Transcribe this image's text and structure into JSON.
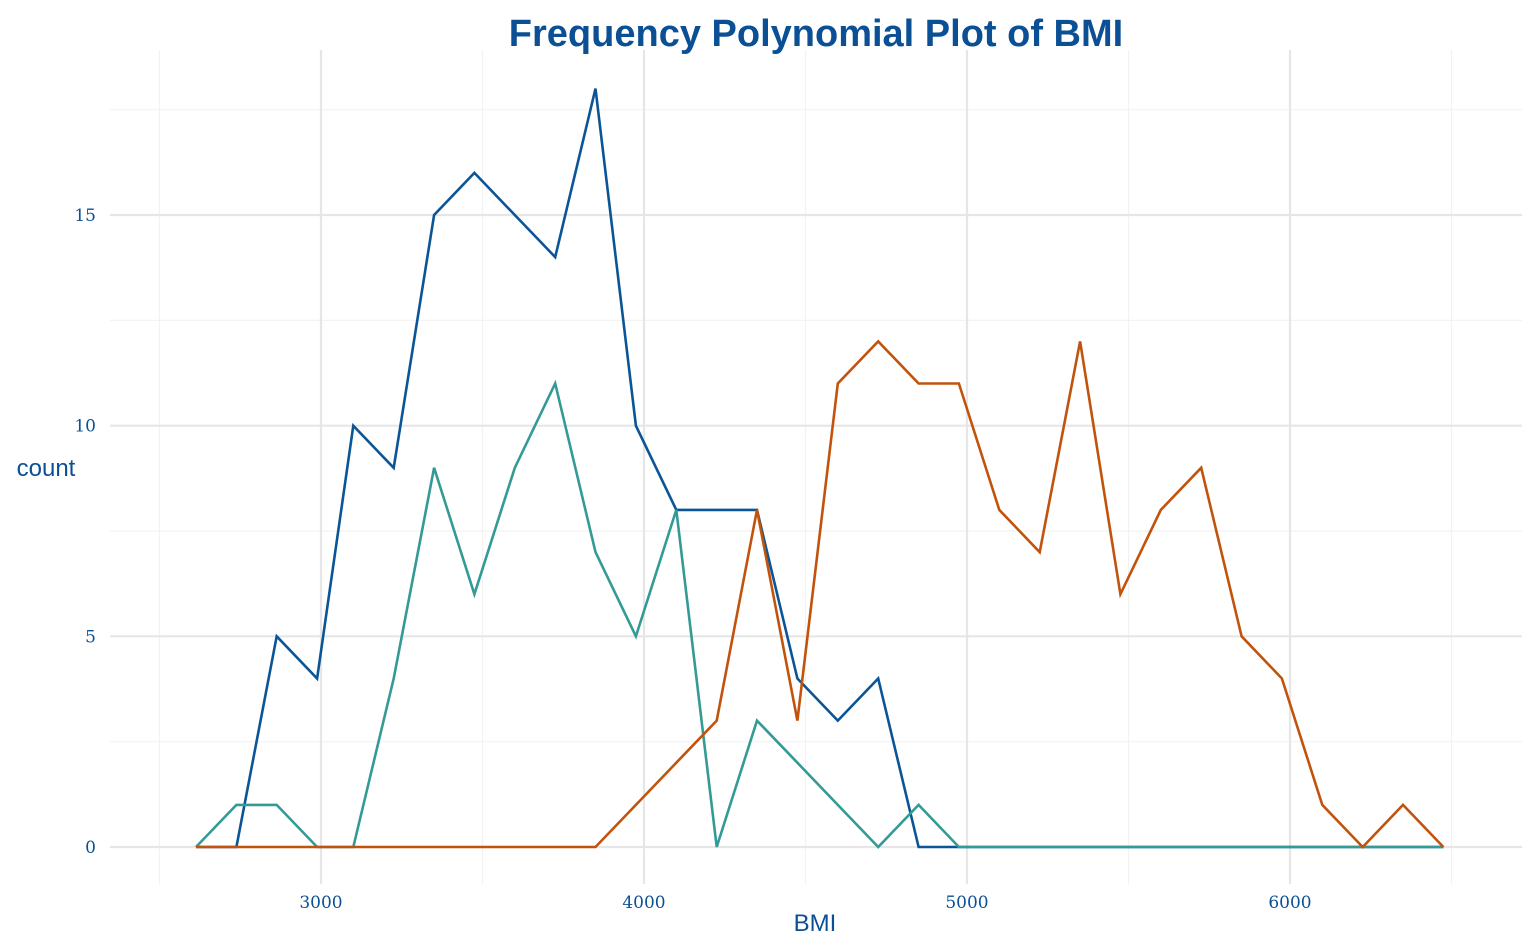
{
  "chart_data": {
    "type": "line",
    "title": "Frequency Polynomial Plot of BMI",
    "xlabel": "BMI",
    "ylabel": "count",
    "xlim": [
      2500,
      6500
    ],
    "ylim": [
      -0.6,
      18.5
    ],
    "x_ticks": [
      "3000",
      "4000",
      "5000",
      "6000"
    ],
    "y_ticks": [
      "0",
      "5",
      "10",
      "15"
    ],
    "x_tick_values": [
      3000,
      4000,
      5000,
      6000
    ],
    "y_tick_values": [
      0,
      5,
      10,
      15
    ],
    "grid": true,
    "legend": "none",
    "colors": {
      "title": "#0b4f95",
      "axis_text": "#0b4f95",
      "grid_major": "#e6e6e6",
      "grid_minor": "#f2f2f2"
    },
    "series": [
      {
        "color": "#0b5597",
        "x": [
          2613,
          2738,
          2863,
          2988,
          3100,
          3225,
          3350,
          3475,
          3600,
          3725,
          3850,
          3975,
          4100,
          4225,
          4350,
          4475,
          4600,
          4725,
          4850,
          4975,
          5100,
          5225,
          5350,
          5475,
          5600,
          5725,
          5850,
          5975,
          6100,
          6225,
          6350,
          6475
        ],
        "values": [
          0,
          0,
          5,
          4,
          10,
          9,
          15,
          16,
          15,
          14,
          18,
          10,
          8,
          8,
          8,
          4,
          3,
          4,
          0,
          0,
          0,
          0,
          0,
          0,
          0,
          0,
          0,
          0,
          0,
          0,
          0,
          0
        ]
      },
      {
        "color": "#339a96",
        "x": [
          2613,
          2738,
          2863,
          2988,
          3100,
          3225,
          3350,
          3475,
          3600,
          3725,
          3850,
          3975,
          4100,
          4225,
          4350,
          4475,
          4600,
          4725,
          4850,
          4975,
          5100,
          5225,
          5350,
          5475,
          5600,
          5725,
          5850,
          5975,
          6100,
          6225,
          6350,
          6475
        ],
        "values": [
          0,
          1,
          1,
          0,
          0,
          4,
          9,
          6,
          9,
          11,
          7,
          5,
          8,
          0,
          3,
          2,
          1,
          0,
          1,
          0,
          0,
          0,
          0,
          0,
          0,
          0,
          0,
          0,
          0,
          0,
          0,
          0
        ]
      },
      {
        "color": "#c2530c",
        "x": [
          2613,
          2738,
          2863,
          2988,
          3100,
          3225,
          3350,
          3475,
          3600,
          3725,
          3850,
          3975,
          4100,
          4225,
          4350,
          4475,
          4600,
          4725,
          4850,
          4975,
          5100,
          5225,
          5350,
          5475,
          5600,
          5725,
          5850,
          5975,
          6100,
          6225,
          6350,
          6475
        ],
        "values": [
          0,
          0,
          0,
          0,
          0,
          0,
          0,
          0,
          0,
          0,
          0,
          1,
          2,
          3,
          8,
          3,
          11,
          12,
          11,
          11,
          8,
          7,
          12,
          6,
          8,
          9,
          5,
          4,
          1,
          0,
          1,
          0
        ]
      }
    ]
  }
}
